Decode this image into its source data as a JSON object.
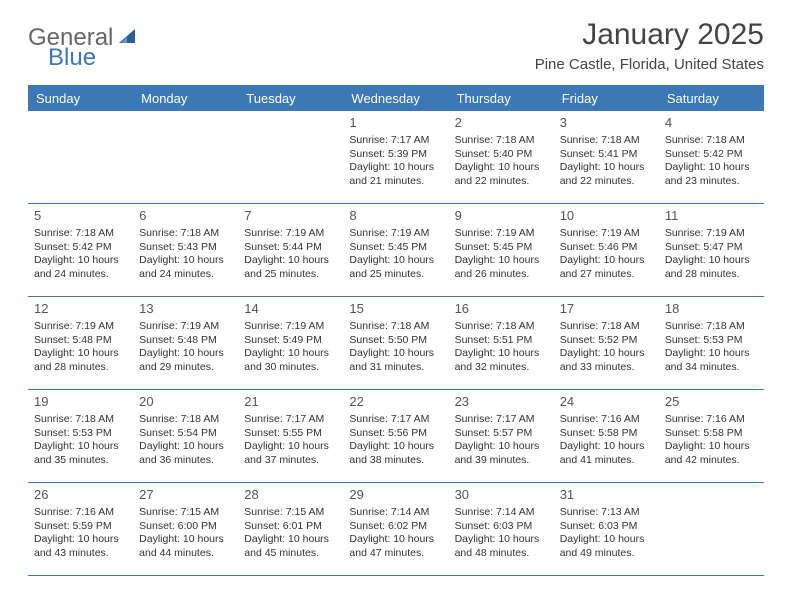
{
  "logo": {
    "word1": "General",
    "word2": "Blue",
    "word1_color": "#666666",
    "word2_color": "#3b78b5",
    "icon_color": "#2b5f99"
  },
  "title": "January 2025",
  "location": "Pine Castle, Florida, United States",
  "colors": {
    "header_bg": "#3b78b5",
    "header_text": "#ffffff",
    "border": "#3b78b5",
    "body_text": "#333333",
    "daynum_text": "#555555",
    "background": "#ffffff"
  },
  "day_names": [
    "Sunday",
    "Monday",
    "Tuesday",
    "Wednesday",
    "Thursday",
    "Friday",
    "Saturday"
  ],
  "weeks": [
    [
      {
        "day": "",
        "lines": []
      },
      {
        "day": "",
        "lines": []
      },
      {
        "day": "",
        "lines": []
      },
      {
        "day": "1",
        "lines": [
          "Sunrise: 7:17 AM",
          "Sunset: 5:39 PM",
          "Daylight: 10 hours and 21 minutes."
        ]
      },
      {
        "day": "2",
        "lines": [
          "Sunrise: 7:18 AM",
          "Sunset: 5:40 PM",
          "Daylight: 10 hours and 22 minutes."
        ]
      },
      {
        "day": "3",
        "lines": [
          "Sunrise: 7:18 AM",
          "Sunset: 5:41 PM",
          "Daylight: 10 hours and 22 minutes."
        ]
      },
      {
        "day": "4",
        "lines": [
          "Sunrise: 7:18 AM",
          "Sunset: 5:42 PM",
          "Daylight: 10 hours and 23 minutes."
        ]
      }
    ],
    [
      {
        "day": "5",
        "lines": [
          "Sunrise: 7:18 AM",
          "Sunset: 5:42 PM",
          "Daylight: 10 hours and 24 minutes."
        ]
      },
      {
        "day": "6",
        "lines": [
          "Sunrise: 7:18 AM",
          "Sunset: 5:43 PM",
          "Daylight: 10 hours and 24 minutes."
        ]
      },
      {
        "day": "7",
        "lines": [
          "Sunrise: 7:19 AM",
          "Sunset: 5:44 PM",
          "Daylight: 10 hours and 25 minutes."
        ]
      },
      {
        "day": "8",
        "lines": [
          "Sunrise: 7:19 AM",
          "Sunset: 5:45 PM",
          "Daylight: 10 hours and 25 minutes."
        ]
      },
      {
        "day": "9",
        "lines": [
          "Sunrise: 7:19 AM",
          "Sunset: 5:45 PM",
          "Daylight: 10 hours and 26 minutes."
        ]
      },
      {
        "day": "10",
        "lines": [
          "Sunrise: 7:19 AM",
          "Sunset: 5:46 PM",
          "Daylight: 10 hours and 27 minutes."
        ]
      },
      {
        "day": "11",
        "lines": [
          "Sunrise: 7:19 AM",
          "Sunset: 5:47 PM",
          "Daylight: 10 hours and 28 minutes."
        ]
      }
    ],
    [
      {
        "day": "12",
        "lines": [
          "Sunrise: 7:19 AM",
          "Sunset: 5:48 PM",
          "Daylight: 10 hours and 28 minutes."
        ]
      },
      {
        "day": "13",
        "lines": [
          "Sunrise: 7:19 AM",
          "Sunset: 5:48 PM",
          "Daylight: 10 hours and 29 minutes."
        ]
      },
      {
        "day": "14",
        "lines": [
          "Sunrise: 7:19 AM",
          "Sunset: 5:49 PM",
          "Daylight: 10 hours and 30 minutes."
        ]
      },
      {
        "day": "15",
        "lines": [
          "Sunrise: 7:18 AM",
          "Sunset: 5:50 PM",
          "Daylight: 10 hours and 31 minutes."
        ]
      },
      {
        "day": "16",
        "lines": [
          "Sunrise: 7:18 AM",
          "Sunset: 5:51 PM",
          "Daylight: 10 hours and 32 minutes."
        ]
      },
      {
        "day": "17",
        "lines": [
          "Sunrise: 7:18 AM",
          "Sunset: 5:52 PM",
          "Daylight: 10 hours and 33 minutes."
        ]
      },
      {
        "day": "18",
        "lines": [
          "Sunrise: 7:18 AM",
          "Sunset: 5:53 PM",
          "Daylight: 10 hours and 34 minutes."
        ]
      }
    ],
    [
      {
        "day": "19",
        "lines": [
          "Sunrise: 7:18 AM",
          "Sunset: 5:53 PM",
          "Daylight: 10 hours and 35 minutes."
        ]
      },
      {
        "day": "20",
        "lines": [
          "Sunrise: 7:18 AM",
          "Sunset: 5:54 PM",
          "Daylight: 10 hours and 36 minutes."
        ]
      },
      {
        "day": "21",
        "lines": [
          "Sunrise: 7:17 AM",
          "Sunset: 5:55 PM",
          "Daylight: 10 hours and 37 minutes."
        ]
      },
      {
        "day": "22",
        "lines": [
          "Sunrise: 7:17 AM",
          "Sunset: 5:56 PM",
          "Daylight: 10 hours and 38 minutes."
        ]
      },
      {
        "day": "23",
        "lines": [
          "Sunrise: 7:17 AM",
          "Sunset: 5:57 PM",
          "Daylight: 10 hours and 39 minutes."
        ]
      },
      {
        "day": "24",
        "lines": [
          "Sunrise: 7:16 AM",
          "Sunset: 5:58 PM",
          "Daylight: 10 hours and 41 minutes."
        ]
      },
      {
        "day": "25",
        "lines": [
          "Sunrise: 7:16 AM",
          "Sunset: 5:58 PM",
          "Daylight: 10 hours and 42 minutes."
        ]
      }
    ],
    [
      {
        "day": "26",
        "lines": [
          "Sunrise: 7:16 AM",
          "Sunset: 5:59 PM",
          "Daylight: 10 hours and 43 minutes."
        ]
      },
      {
        "day": "27",
        "lines": [
          "Sunrise: 7:15 AM",
          "Sunset: 6:00 PM",
          "Daylight: 10 hours and 44 minutes."
        ]
      },
      {
        "day": "28",
        "lines": [
          "Sunrise: 7:15 AM",
          "Sunset: 6:01 PM",
          "Daylight: 10 hours and 45 minutes."
        ]
      },
      {
        "day": "29",
        "lines": [
          "Sunrise: 7:14 AM",
          "Sunset: 6:02 PM",
          "Daylight: 10 hours and 47 minutes."
        ]
      },
      {
        "day": "30",
        "lines": [
          "Sunrise: 7:14 AM",
          "Sunset: 6:03 PM",
          "Daylight: 10 hours and 48 minutes."
        ]
      },
      {
        "day": "31",
        "lines": [
          "Sunrise: 7:13 AM",
          "Sunset: 6:03 PM",
          "Daylight: 10 hours and 49 minutes."
        ]
      },
      {
        "day": "",
        "lines": []
      }
    ]
  ]
}
